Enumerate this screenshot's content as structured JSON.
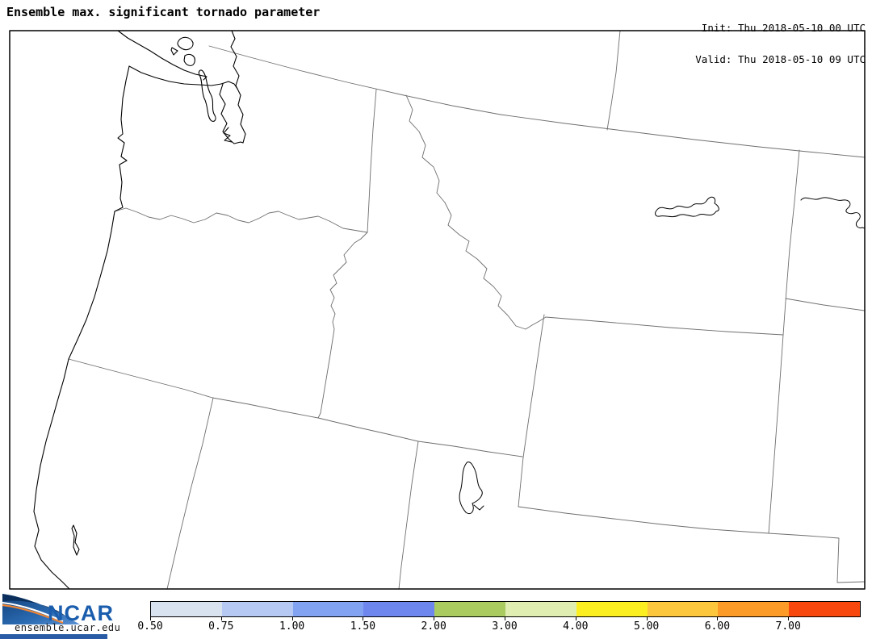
{
  "header": {
    "title": "Ensemble max. significant tornado parameter",
    "init_label": "Init: Thu 2018-05-10 00 UTC",
    "valid_label": "Valid: Thu 2018-05-10 09 UTC"
  },
  "colorbar": {
    "tick_labels": [
      "0.50",
      "0.75",
      "1.00",
      "1.50",
      "2.00",
      "3.00",
      "4.00",
      "5.00",
      "6.00",
      "7.00"
    ],
    "tick_values": [
      0.5,
      0.75,
      1.0,
      1.5,
      2.0,
      3.0,
      4.0,
      5.0,
      6.0,
      7.0
    ],
    "segment_colors": [
      "#d9e3f0",
      "#b6c9f2",
      "#81a3f2",
      "#6e87ee",
      "#a9cb60",
      "#e0eeb1",
      "#fbee21",
      "#fcc63d",
      "#fd9b28",
      "#f8480e"
    ]
  },
  "footer": {
    "logo_text": "NCAR",
    "url_text": "ensemble.ucar.edu",
    "brand_blue": "#1a5dad",
    "bar_color": "#2a5ba5",
    "swoosh_orange": "#ee8433",
    "swoosh_navy": "#0a2f5c"
  }
}
